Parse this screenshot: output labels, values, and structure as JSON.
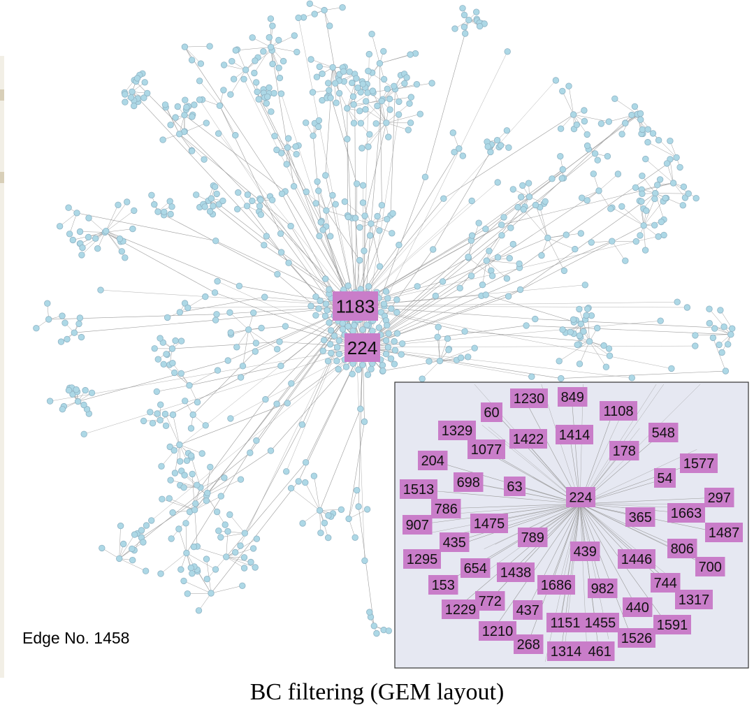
{
  "graph": {
    "hub_labels": [
      "1183",
      "224"
    ],
    "node_color": "#add8e6",
    "node_stroke": "#8fb3c4",
    "edge_color": "#9a9a9a",
    "label_color": "#c97dc9"
  },
  "inset": {
    "background": "#e6e8f2",
    "center_label": "224",
    "neighbor_labels": [
      "1230",
      "849",
      "60",
      "1108",
      "1329",
      "1422",
      "1414",
      "548",
      "1077",
      "178",
      "204",
      "1577",
      "63",
      "54",
      "1513",
      "698",
      "297",
      "786",
      "365",
      "1663",
      "907",
      "1475",
      "1487",
      "789",
      "435",
      "806",
      "439",
      "1446",
      "1295",
      "700",
      "654",
      "1438",
      "153",
      "744",
      "1686",
      "982",
      "1317",
      "772",
      "440",
      "1229",
      "437",
      "1151",
      "1455",
      "1591",
      "1210",
      "1526",
      "268",
      "1314",
      "461"
    ]
  },
  "edge_count": {
    "text": "Edge No. 1458"
  },
  "caption": "BC filtering (GEM layout)"
}
